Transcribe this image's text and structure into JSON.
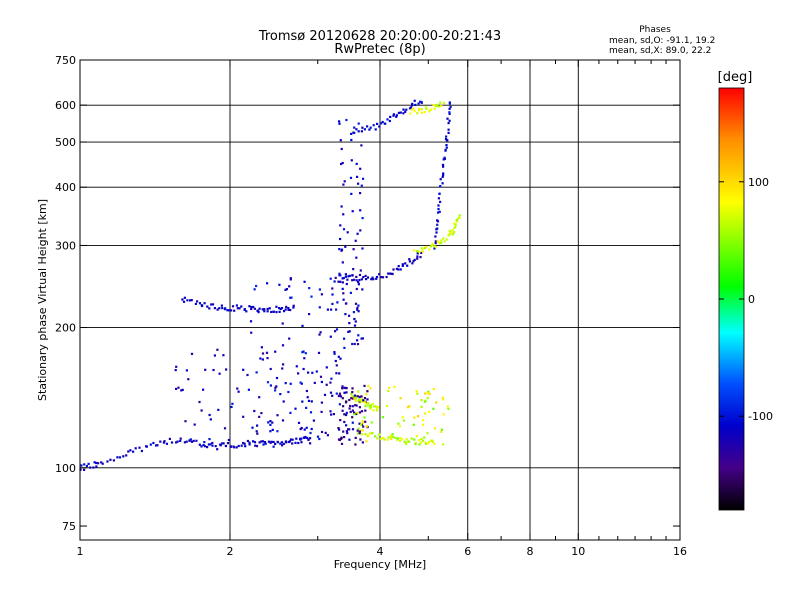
{
  "chart_data": {
    "type": "scatter",
    "title": "Tromsø 20120628 20:20:00-20:21:43",
    "subtitle": "RwPretec (8p)",
    "xlabel": "Frequency [MHz]",
    "ylabel": "Stationary phase Virtual Height [km]",
    "x_scale": "log",
    "y_scale": "log",
    "xlim": [
      1,
      16
    ],
    "ylim": [
      70,
      750
    ],
    "x_ticks": [
      1,
      2,
      4,
      6,
      8,
      10,
      16
    ],
    "x_tick_labels": [
      "1",
      "2",
      "4",
      "6",
      "8",
      "10",
      "16"
    ],
    "x_grid": [
      2,
      4,
      6,
      8,
      10
    ],
    "x_minor_ticks": [
      3,
      5,
      7,
      9,
      11,
      12,
      13,
      14,
      15
    ],
    "y_ticks": [
      75,
      100,
      200,
      300,
      400,
      500,
      600,
      750
    ],
    "y_tick_labels": [
      "75",
      "100",
      "200",
      "300",
      "400",
      "500",
      "600",
      "750"
    ],
    "y_grid": [
      100,
      200,
      300,
      400,
      500,
      600
    ],
    "grid": true,
    "phase_box": {
      "title": "Phases",
      "line1": "mean, sd,O: -91.1, 19.2",
      "line2": "mean, sd,X:  89.0, 22.2"
    },
    "colorbar": {
      "label": "[deg]",
      "range": [
        -180,
        180
      ],
      "ticks": [
        100,
        0,
        -100
      ],
      "tick_labels": [
        "100",
        "0",
        "-100"
      ],
      "colors": [
        "#ff0000",
        "#ff8c00",
        "#ffff00",
        "#00ff00",
        "#00ffff",
        "#0050ff",
        "#0000cc",
        "#440088",
        "#000000"
      ]
    },
    "traces": [
      {
        "phase": -95,
        "x": [
          1.0,
          1.05,
          1.1,
          1.2,
          1.3,
          1.4,
          1.5,
          1.6,
          1.7,
          1.8,
          1.9,
          2.0,
          2.1,
          2.2,
          2.3,
          2.4,
          2.5,
          2.6,
          2.7,
          2.8,
          2.9
        ],
        "y": [
          100,
          101,
          103,
          106,
          109,
          112,
          114,
          114,
          113,
          112,
          111,
          112,
          112,
          113,
          113,
          112,
          113,
          113,
          114,
          115,
          116
        ]
      },
      {
        "phase": -95,
        "x": [
          1.6,
          1.7,
          1.8,
          1.9,
          2.0,
          2.1,
          2.2,
          2.3,
          2.4,
          2.5,
          2.6,
          2.7
        ],
        "y": [
          230,
          225,
          222,
          221,
          220,
          220,
          220,
          220,
          219,
          219,
          220,
          222
        ]
      },
      {
        "phase": -100,
        "x": [
          3.3,
          3.5,
          3.7,
          3.9,
          4.1,
          4.3,
          4.5,
          4.7,
          4.85
        ],
        "y": [
          258,
          256,
          255,
          257,
          260,
          265,
          272,
          282,
          290
        ]
      },
      {
        "phase": -90,
        "x": [
          5.15,
          5.2,
          5.25,
          5.3,
          5.35,
          5.4,
          5.45,
          5.5,
          5.52
        ],
        "y": [
          300,
          330,
          360,
          400,
          440,
          480,
          520,
          570,
          620
        ]
      },
      {
        "phase": -90,
        "x": [
          3.5,
          3.7,
          3.9,
          4.1,
          4.3,
          4.5,
          4.7,
          4.9
        ],
        "y": [
          525,
          530,
          540,
          555,
          572,
          588,
          605,
          620
        ]
      },
      {
        "phase": 85,
        "x": [
          4.7,
          4.9,
          5.1,
          5.3,
          5.5,
          5.6,
          5.7,
          5.8
        ],
        "y": [
          290,
          295,
          300,
          305,
          315,
          325,
          335,
          350
        ]
      },
      {
        "phase": 80,
        "x": [
          3.5,
          3.6,
          3.7,
          3.8,
          3.9,
          4.0
        ],
        "y": [
          145,
          141,
          138,
          136,
          135,
          134
        ]
      },
      {
        "phase": 80,
        "x": [
          3.6,
          3.8,
          4.0,
          4.2,
          4.4,
          4.6,
          4.8,
          5.0,
          5.2
        ],
        "y": [
          120,
          118,
          117,
          116,
          115,
          114,
          114,
          113,
          113
        ]
      },
      {
        "phase": 85,
        "x": [
          4.6,
          4.8,
          5.0,
          5.2,
          5.4
        ],
        "y": [
          580,
          585,
          590,
          600,
          610
        ]
      }
    ],
    "clusters": [
      {
        "phase": -95,
        "x_range": [
          3.3,
          3.7
        ],
        "y_range": [
          180,
          560
        ]
      },
      {
        "phase": -100,
        "x_range": [
          1.5,
          3.2
        ],
        "y_range": [
          112,
          180
        ]
      },
      {
        "phase": -100,
        "x_range": [
          3.0,
          3.6
        ],
        "y_range": [
          110,
          260
        ]
      },
      {
        "phase": -130,
        "x_range": [
          3.3,
          3.8
        ],
        "y_range": [
          112,
          150
        ]
      },
      {
        "phase": 85,
        "x_range": [
          3.5,
          5.5
        ],
        "y_range": [
          112,
          150
        ]
      },
      {
        "phase": -90,
        "x_range": [
          2.2,
          3.0
        ],
        "y_range": [
          118,
          260
        ]
      }
    ]
  }
}
